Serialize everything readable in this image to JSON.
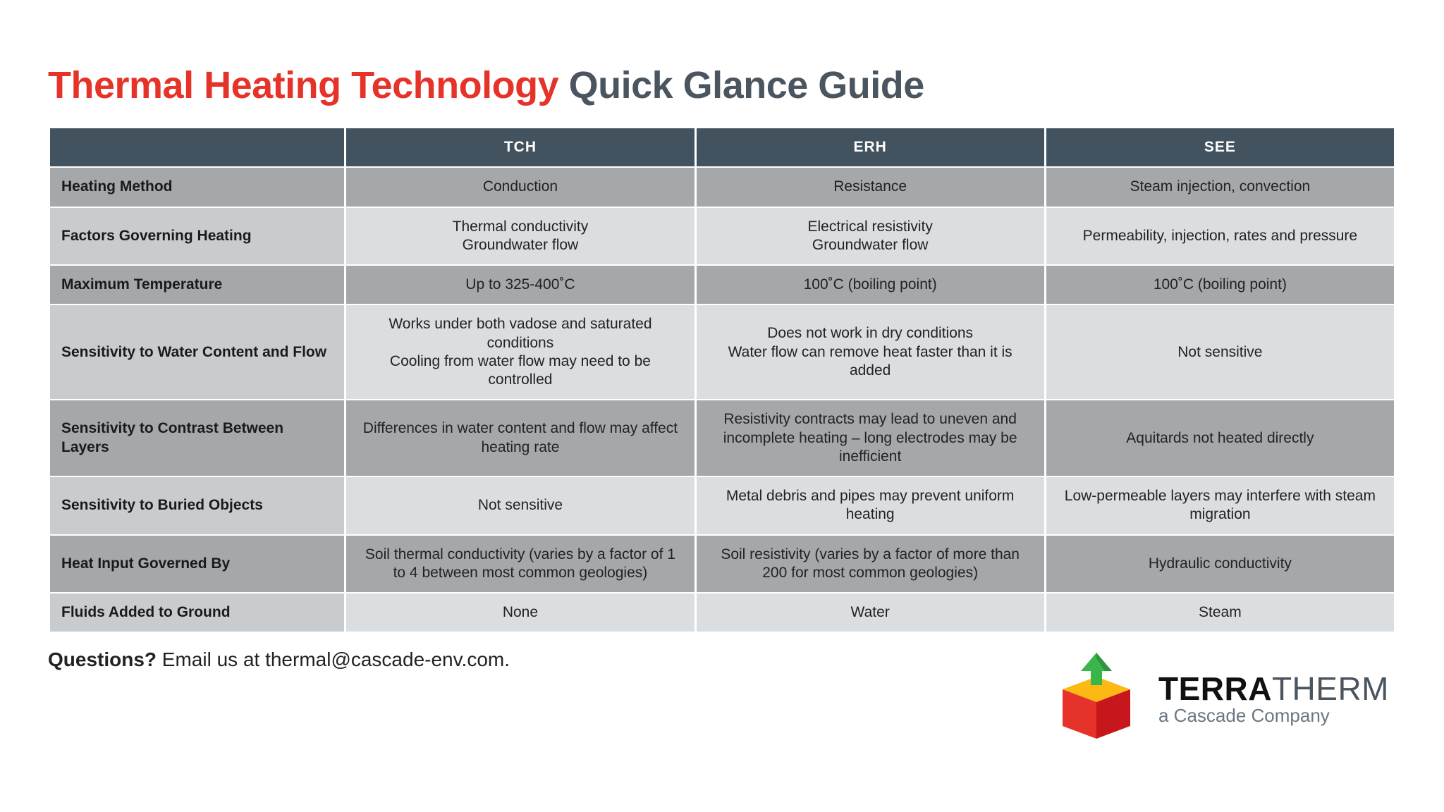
{
  "title": {
    "part1": "Thermal Heating Technology",
    "part2": "Quick Glance Guide",
    "color_part1": "#e63329",
    "color_part2": "#4a5560"
  },
  "table": {
    "header_bg": "#43525f",
    "header_text_color": "#ffffff",
    "odd_row_bg": "#a4a8ab",
    "even_label_bg": "#c9cccf",
    "even_data_bg": "#dbdee0",
    "columns": [
      "TCH",
      "ERH",
      "SEE"
    ],
    "rows": [
      {
        "label": "Heating Method",
        "cells": [
          "Conduction",
          "Resistance",
          "Steam injection, convection"
        ]
      },
      {
        "label": "Factors Governing Heating",
        "cells": [
          "Thermal conductivity\nGroundwater flow",
          "Electrical resistivity\nGroundwater flow",
          "Permeability, injection, rates and pressure"
        ]
      },
      {
        "label": "Maximum Temperature",
        "cells": [
          "Up to 325-400˚C",
          "100˚C (boiling point)",
          "100˚C (boiling point)"
        ]
      },
      {
        "label": "Sensitivity to Water Content and Flow",
        "cells": [
          "Works under both vadose and saturated conditions\nCooling from water flow may need to be controlled",
          "Does not work in dry conditions\nWater flow can remove heat faster than it is added",
          "Not sensitive"
        ]
      },
      {
        "label": "Sensitivity to Contrast Between Layers",
        "cells": [
          "Differences in water content and flow may affect heating rate",
          "Resistivity contracts may lead to uneven and incomplete heating – long electrodes may be inefficient",
          "Aquitards not heated directly"
        ]
      },
      {
        "label": "Sensitivity to Buried Objects",
        "cells": [
          "Not sensitive",
          "Metal debris and pipes may prevent uniform heating",
          "Low-permeable layers may interfere with steam migration"
        ]
      },
      {
        "label": "Heat Input Governed By",
        "cells": [
          "Soil thermal conductivity (varies by a factor of 1 to 4 between most common geologies)",
          "Soil resistivity (varies by a factor of more than 200 for most common geologies)",
          "Hydraulic conductivity"
        ]
      },
      {
        "label": "Fluids Added to Ground",
        "cells": [
          "None",
          "Water",
          "Steam"
        ]
      }
    ]
  },
  "footer": {
    "questions_label": "Questions?",
    "questions_text": "Email us at thermal@cascade-env.com."
  },
  "logo": {
    "text_main_1": "TERRA",
    "text_main_2": "THERM",
    "text_sub": "a Cascade Company",
    "box_top_color": "#fdb913",
    "box_side_color": "#e63329",
    "box_front_color": "#c8161d",
    "arrow_color": "#39b54a",
    "arrow_dark": "#2e9440"
  }
}
